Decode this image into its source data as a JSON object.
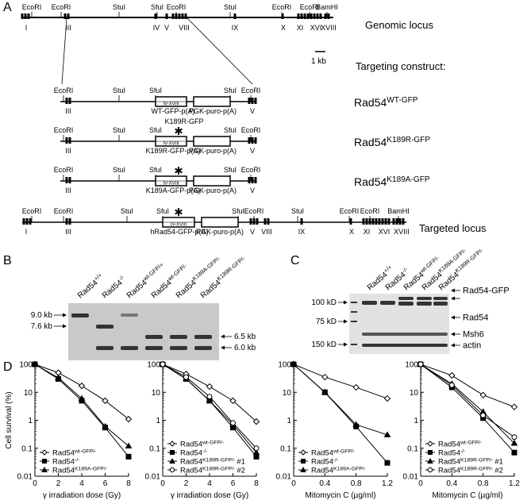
{
  "figure": {
    "panel_a": {
      "label": "A",
      "genomic_locus": {
        "title": "Genomic locus",
        "sites": [
          "EcoRI",
          "EcoRI",
          "StuI",
          "SfuI",
          "EcoRI",
          "StuI",
          "EcoRI",
          "EcoRI",
          "BamHI"
        ],
        "exons": [
          "I",
          "III",
          "IV",
          "V",
          "VIII",
          "IX",
          "X",
          "XI",
          "XVI",
          "XVIII"
        ]
      },
      "scale_bar": "1 kb",
      "construct_heading": "Targeting construct:",
      "constructs": [
        {
          "sites": [
            "EcoRI",
            "StuI",
            "SfuI",
            "SfuI",
            "EcoRI"
          ],
          "exons": [
            "III",
            "V"
          ],
          "box": "IV-XVIII",
          "cassette": "WT-GFP-p(A)",
          "selection": "PGK-puro-p(A)",
          "name": "Rad54",
          "superscript": "WT-GFP"
        },
        {
          "sites": [
            "EcoRI",
            "StuI",
            "SfuI",
            "SfuI",
            "EcoRI"
          ],
          "exons": [
            "III",
            "V"
          ],
          "box": "IV-XVIII",
          "cassette": "K189R-GFP-p(A)",
          "selection": "PGK-puro-p(A)",
          "name": "Rad54",
          "superscript": "K189R-GFP",
          "mutation": "K189R-GFP"
        },
        {
          "sites": [
            "EcoRI",
            "StuI",
            "SfuI",
            "SfuI",
            "EcoRI"
          ],
          "exons": [
            "III",
            "V"
          ],
          "box": "IV-XVIII",
          "cassette": "K189A-GFP-p(A)",
          "selection": "PGK-puro-p(A)",
          "name": "Rad54",
          "superscript": "K189A-GFP"
        }
      ],
      "targeted_locus": {
        "title": "Targeted locus",
        "sites": [
          "EcoRI",
          "EcoRI",
          "StuI",
          "SfuI",
          "SfuI",
          "EcoRI",
          "StuI",
          "EcoRI",
          "EcoRI",
          "BamHI"
        ],
        "exons": [
          "I",
          "III",
          "V",
          "VIII",
          "IX",
          "X",
          "XI",
          "XVI",
          "XVIII"
        ],
        "box": "IV-XVIII",
        "cassette": "hRad54-GFP-p(A)",
        "selection": "PGK-puro-p(A)"
      }
    },
    "panel_b": {
      "label": "B",
      "lanes": [
        {
          "name": "Rad54",
          "superscript": "+/+"
        },
        {
          "name": "Rad54",
          "superscript": "-/-"
        },
        {
          "name": "Rad54",
          "superscript": "wt-GFP/+"
        },
        {
          "name": "Rad54",
          "superscript": "wt-GFP/-"
        },
        {
          "name": "Rad54",
          "superscript": "K189A-GFP/-"
        },
        {
          "name": "Rad54",
          "superscript": "K189R-GFP/-"
        }
      ],
      "markers_left": [
        "9.0 kb",
        "7.6 kb"
      ],
      "markers_right": [
        "6.5 kb",
        "6.0 kb"
      ]
    },
    "panel_c": {
      "label": "C",
      "lanes": [
        {
          "name": "Rad54",
          "superscript": "+/+"
        },
        {
          "name": "Rad54",
          "superscript": "-/-"
        },
        {
          "name": "Rad54",
          "superscript": "wt-GFP/-"
        },
        {
          "name": "Rad54",
          "superscript": "K189A-GFP/-"
        },
        {
          "name": "Rad54",
          "superscript": "K189R-GFP/-"
        }
      ],
      "markers_left": [
        "100 kD",
        "75 kD",
        "150 kD"
      ],
      "bands_right": [
        "Rad54-GFP",
        "Rad54",
        "Msh6",
        "actin"
      ]
    },
    "panel_d": {
      "label": "D"
    }
  },
  "chart_data": [
    {
      "type": "line",
      "ylabel": "Cell survival (%)",
      "xlabel": "γ irradiation dose (Gy)",
      "log_y": true,
      "legend": "lower left",
      "x": [
        0,
        2,
        4,
        6,
        8
      ],
      "xlim": [
        0,
        8
      ],
      "xticks": [
        0,
        2,
        4,
        6,
        8
      ],
      "ylim": [
        0.01,
        100
      ],
      "yticks": [
        0.01,
        0.1,
        1,
        10,
        100
      ],
      "series": [
        {
          "name": "Rad54",
          "superscript": "wt-GFP/-",
          "marker": "open-diamond",
          "color": "#000000",
          "values": [
            100,
            50,
            17,
            5,
            1.1
          ]
        },
        {
          "name": "Rad54",
          "superscript": "-/-",
          "marker": "filled-square",
          "color": "#000000",
          "values": [
            100,
            30,
            5,
            0.55,
            0.05
          ]
        },
        {
          "name": "Rad54",
          "superscript": "K189A-GFP/-",
          "marker": "filled-triangle",
          "color": "#000000",
          "values": [
            100,
            33,
            6,
            0.6,
            0.12
          ]
        }
      ]
    },
    {
      "type": "line",
      "xlabel": "γ irradiation dose (Gy)",
      "log_y": true,
      "legend": "lower left",
      "x": [
        0,
        2,
        4,
        6,
        8
      ],
      "xlim": [
        0,
        8
      ],
      "xticks": [
        0,
        2,
        4,
        6,
        8
      ],
      "ylim": [
        0.01,
        100
      ],
      "yticks": [
        0.01,
        0.1,
        1,
        10,
        100
      ],
      "series": [
        {
          "name": "Rad54",
          "superscript": "wt-GFP/-",
          "marker": "open-diamond",
          "color": "#000000",
          "values": [
            100,
            45,
            16,
            5,
            0.9
          ]
        },
        {
          "name": "Rad54",
          "superscript": "-/-",
          "marker": "filled-square",
          "color": "#000000",
          "values": [
            100,
            30,
            5,
            0.55,
            0.05
          ]
        },
        {
          "name": "Rad54",
          "superscript": "K189R-GFP/-",
          "suffix": "#1",
          "marker": "filled-triangle",
          "color": "#000000",
          "values": [
            100,
            30,
            5,
            0.7,
            0.07
          ]
        },
        {
          "name": "Rad54",
          "superscript": "K189R-GFP/-",
          "suffix": "#2",
          "marker": "open-circle",
          "color": "#000000",
          "values": [
            100,
            35,
            7,
            0.8,
            0.1
          ]
        }
      ]
    },
    {
      "type": "line",
      "xlabel": "Mitomycin C (µg/ml)",
      "log_y": true,
      "legend": "lower left",
      "x": [
        0,
        0.4,
        0.8,
        1.2
      ],
      "xlim": [
        0,
        1.2
      ],
      "xticks": [
        0,
        0.4,
        0.8,
        1.2
      ],
      "ylim": [
        0.01,
        100
      ],
      "yticks": [
        0.01,
        0.1,
        1,
        10,
        100
      ],
      "series": [
        {
          "name": "Rad54",
          "superscript": "wt-GFP/-",
          "marker": "open-diamond",
          "color": "#000000",
          "values": [
            100,
            35,
            15,
            6
          ]
        },
        {
          "name": "Rad54",
          "superscript": "-/-",
          "marker": "filled-square",
          "color": "#000000",
          "values": [
            100,
            10,
            0.6,
            0.03
          ]
        },
        {
          "name": "Rad54",
          "superscript": "K189A-GFP/-",
          "marker": "filled-triangle",
          "color": "#000000",
          "values": [
            100,
            10,
            0.7,
            0.3
          ]
        }
      ]
    },
    {
      "type": "line",
      "xlabel": "Mitomycin C (µg/ml)",
      "log_y": true,
      "legend": "lower left",
      "x": [
        0,
        0.4,
        0.8,
        1.2
      ],
      "xlim": [
        0,
        1.2
      ],
      "xticks": [
        0,
        0.4,
        0.8,
        1.2
      ],
      "ylim": [
        0.01,
        100
      ],
      "yticks": [
        0.01,
        0.1,
        1,
        10,
        100
      ],
      "series": [
        {
          "name": "Rad54",
          "superscript": "wt-GFP/-",
          "marker": "open-diamond",
          "color": "#000000",
          "values": [
            100,
            40,
            8,
            3
          ]
        },
        {
          "name": "Rad54",
          "superscript": "-/-",
          "marker": "filled-square",
          "color": "#000000",
          "values": [
            100,
            15,
            1.2,
            0.07
          ]
        },
        {
          "name": "Rad54",
          "superscript": "K189R-GFP/-",
          "suffix": "#1",
          "marker": "filled-triangle",
          "color": "#000000",
          "values": [
            100,
            20,
            2,
            0.15
          ]
        },
        {
          "name": "Rad54",
          "superscript": "K189R-GFP/-",
          "suffix": "#2",
          "marker": "open-circle",
          "color": "#000000",
          "values": [
            100,
            18,
            1.5,
            0.25
          ]
        }
      ]
    }
  ]
}
